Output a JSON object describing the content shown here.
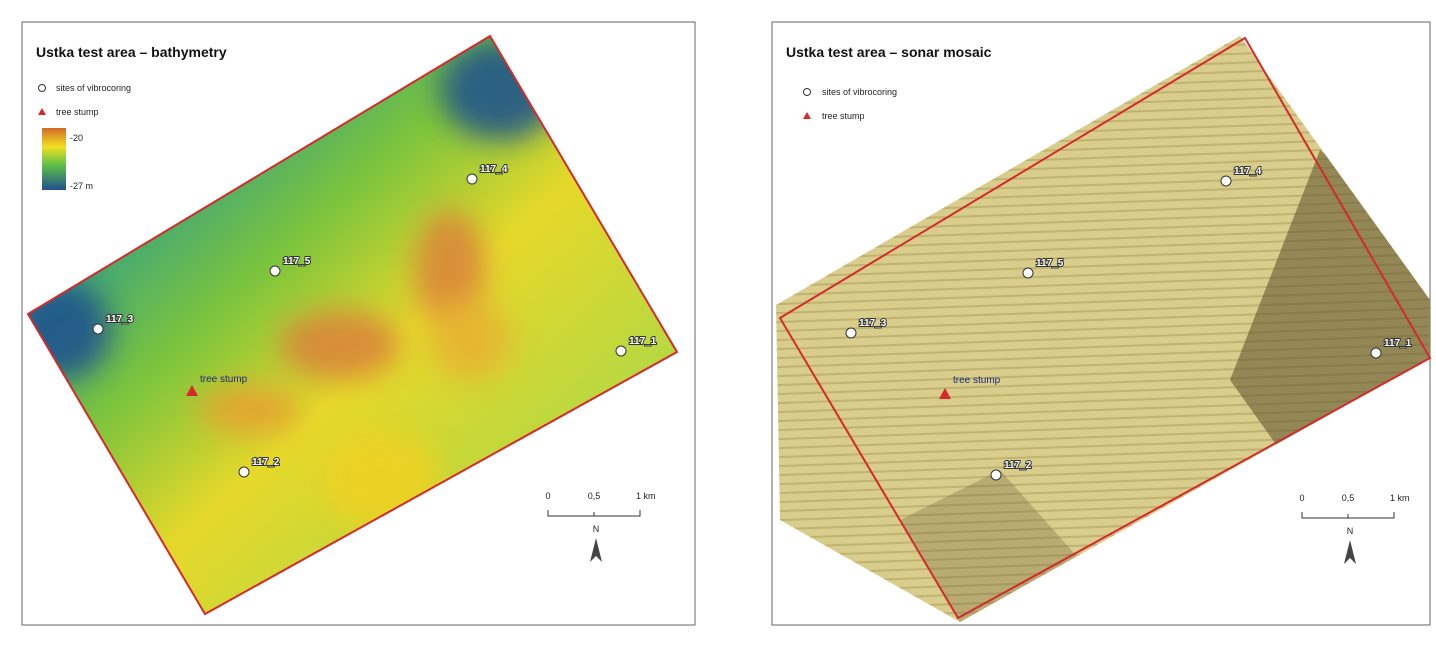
{
  "panels": [
    {
      "title": "Ustka test area – bathymetry",
      "legend": {
        "sites": "sites of vibrocoring",
        "stump": "tree stump",
        "depth_top": "-20",
        "depth_bottom": "-27 m"
      },
      "sites": [
        "117_4",
        "117_5",
        "117_3",
        "117_1",
        "117_2"
      ],
      "stump_label": "tree stump",
      "scale": {
        "labels": [
          "0",
          "0,5",
          "1 km"
        ],
        "north": "N"
      }
    },
    {
      "title": "Ustka test area – sonar mosaic",
      "legend": {
        "sites": "sites of vibrocoring",
        "stump": "tree stump"
      },
      "sites": [
        "117_4",
        "117_5",
        "117_3",
        "117_1",
        "117_2"
      ],
      "stump_label": "tree stump",
      "scale": {
        "labels": [
          "0",
          "0,5",
          "1 km"
        ],
        "north": "N"
      }
    }
  ]
}
